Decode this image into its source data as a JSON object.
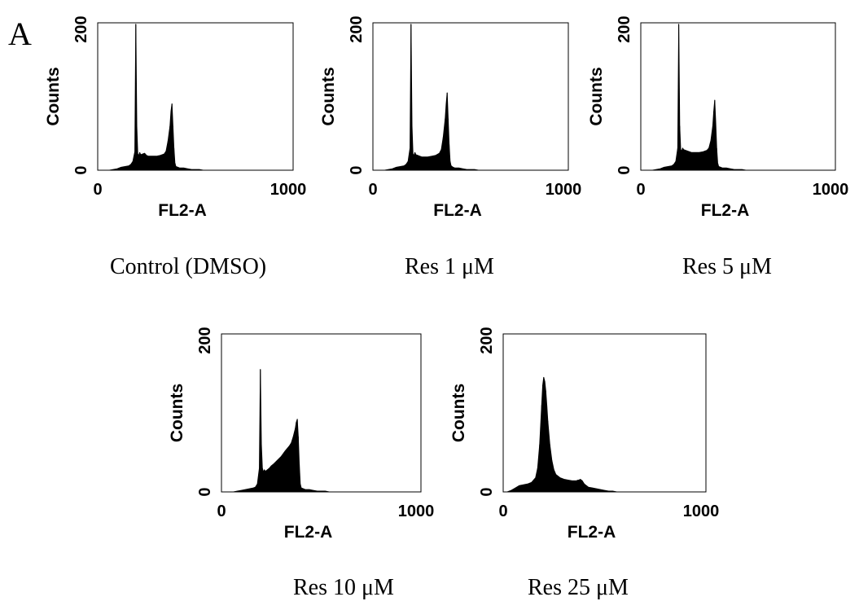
{
  "figure": {
    "panel_label": "A"
  },
  "chart_data": [
    {
      "type": "area",
      "caption": "Control (DMSO)",
      "xlabel": "FL2-A",
      "ylabel": "Counts",
      "xlim": [
        0,
        1000
      ],
      "ylim": [
        0,
        200
      ],
      "xticks": [
        "0",
        "1000"
      ],
      "yticks": [
        "0",
        "200"
      ],
      "grid": false,
      "x": [
        0,
        20,
        40,
        60,
        80,
        100,
        120,
        140,
        160,
        170,
        180,
        190,
        195,
        200,
        205,
        210,
        215,
        220,
        230,
        240,
        250,
        260,
        280,
        300,
        320,
        340,
        350,
        360,
        370,
        375,
        380,
        385,
        390,
        395,
        400,
        410,
        420,
        440,
        460,
        480,
        500,
        520,
        540,
        560,
        600,
        700,
        800,
        900,
        1000
      ],
      "values": [
        0,
        0,
        0,
        0,
        1,
        2,
        4,
        5,
        6,
        8,
        12,
        25,
        198,
        60,
        22,
        20,
        24,
        21,
        22,
        23,
        20,
        19,
        19,
        19,
        20,
        22,
        26,
        40,
        60,
        80,
        90,
        60,
        30,
        10,
        5,
        4,
        3,
        3,
        2,
        1,
        1,
        1,
        0,
        0,
        0,
        0,
        0,
        0,
        0
      ]
    },
    {
      "type": "area",
      "caption": "Res 1 μM",
      "xlabel": "FL2-A",
      "ylabel": "Counts",
      "xlim": [
        0,
        1000
      ],
      "ylim": [
        0,
        200
      ],
      "xticks": [
        "0",
        "1000"
      ],
      "yticks": [
        "0",
        "200"
      ],
      "grid": false,
      "x": [
        0,
        20,
        40,
        60,
        80,
        100,
        120,
        140,
        160,
        170,
        180,
        190,
        195,
        200,
        205,
        210,
        215,
        220,
        230,
        240,
        250,
        260,
        280,
        300,
        320,
        340,
        350,
        360,
        370,
        375,
        380,
        385,
        390,
        395,
        400,
        410,
        420,
        440,
        460,
        480,
        500,
        520,
        540,
        560,
        600,
        700,
        800,
        900,
        1000
      ],
      "values": [
        0,
        0,
        0,
        0,
        1,
        2,
        4,
        5,
        6,
        8,
        12,
        30,
        198,
        60,
        22,
        20,
        24,
        21,
        20,
        19,
        18,
        18,
        18,
        19,
        20,
        23,
        28,
        45,
        70,
        90,
        105,
        70,
        35,
        12,
        6,
        4,
        3,
        3,
        2,
        1,
        1,
        1,
        0,
        0,
        0,
        0,
        0,
        0,
        0
      ]
    },
    {
      "type": "area",
      "caption": "Res 5 μM",
      "xlabel": "FL2-A",
      "ylabel": "Counts",
      "xlim": [
        0,
        1000
      ],
      "ylim": [
        0,
        200
      ],
      "xticks": [
        "0",
        "1000"
      ],
      "yticks": [
        "0",
        "200"
      ],
      "grid": false,
      "x": [
        0,
        20,
        40,
        60,
        80,
        100,
        120,
        140,
        160,
        170,
        180,
        190,
        195,
        200,
        205,
        210,
        215,
        220,
        230,
        240,
        250,
        260,
        280,
        300,
        320,
        340,
        350,
        360,
        370,
        375,
        380,
        385,
        390,
        395,
        400,
        410,
        420,
        440,
        460,
        480,
        500,
        520,
        540,
        560,
        600,
        700,
        800,
        900,
        1000
      ],
      "values": [
        0,
        0,
        0,
        0,
        1,
        2,
        4,
        5,
        6,
        8,
        12,
        30,
        198,
        60,
        28,
        26,
        30,
        28,
        27,
        26,
        25,
        24,
        24,
        24,
        25,
        27,
        30,
        40,
        60,
        80,
        95,
        65,
        30,
        10,
        5,
        4,
        3,
        3,
        2,
        1,
        1,
        1,
        0,
        0,
        0,
        0,
        0,
        0,
        0
      ]
    },
    {
      "type": "area",
      "caption": "Res 10 μM",
      "xlabel": "FL2-A",
      "ylabel": "Counts",
      "xlim": [
        0,
        1000
      ],
      "ylim": [
        0,
        200
      ],
      "xticks": [
        "0",
        "1000"
      ],
      "yticks": [
        "0",
        "200"
      ],
      "grid": false,
      "x": [
        0,
        20,
        40,
        60,
        80,
        100,
        120,
        140,
        160,
        170,
        180,
        190,
        195,
        200,
        205,
        210,
        215,
        220,
        230,
        240,
        250,
        260,
        280,
        300,
        320,
        340,
        350,
        360,
        370,
        375,
        380,
        385,
        390,
        395,
        400,
        410,
        420,
        440,
        460,
        480,
        500,
        520,
        540,
        560,
        600,
        700,
        800,
        900,
        1000
      ],
      "values": [
        0,
        0,
        0,
        0,
        1,
        2,
        3,
        4,
        5,
        6,
        10,
        30,
        155,
        60,
        30,
        25,
        28,
        26,
        28,
        30,
        33,
        35,
        40,
        45,
        52,
        58,
        62,
        70,
        80,
        88,
        92,
        70,
        35,
        10,
        5,
        4,
        3,
        3,
        2,
        1,
        1,
        1,
        0,
        0,
        0,
        0,
        0,
        0,
        0
      ]
    },
    {
      "type": "area",
      "caption": "Res 25 μM",
      "xlabel": "FL2-A",
      "ylabel": "Counts",
      "xlim": [
        0,
        1000
      ],
      "ylim": [
        0,
        200
      ],
      "xticks": [
        "0",
        "1000"
      ],
      "yticks": [
        "0",
        "200"
      ],
      "grid": false,
      "x": [
        0,
        20,
        40,
        60,
        80,
        100,
        120,
        140,
        160,
        170,
        180,
        190,
        195,
        200,
        205,
        210,
        215,
        220,
        230,
        240,
        250,
        260,
        280,
        300,
        320,
        340,
        350,
        360,
        370,
        375,
        380,
        385,
        390,
        395,
        400,
        410,
        420,
        440,
        460,
        480,
        500,
        520,
        540,
        560,
        600,
        700,
        800,
        900,
        1000
      ],
      "values": [
        0,
        0,
        2,
        5,
        8,
        9,
        10,
        12,
        18,
        30,
        60,
        110,
        135,
        145,
        140,
        128,
        110,
        90,
        60,
        40,
        28,
        22,
        18,
        16,
        15,
        14,
        14,
        14,
        15,
        15,
        16,
        15,
        14,
        12,
        10,
        8,
        6,
        5,
        4,
        3,
        2,
        1,
        1,
        0,
        0,
        0,
        0,
        0,
        0
      ]
    }
  ]
}
